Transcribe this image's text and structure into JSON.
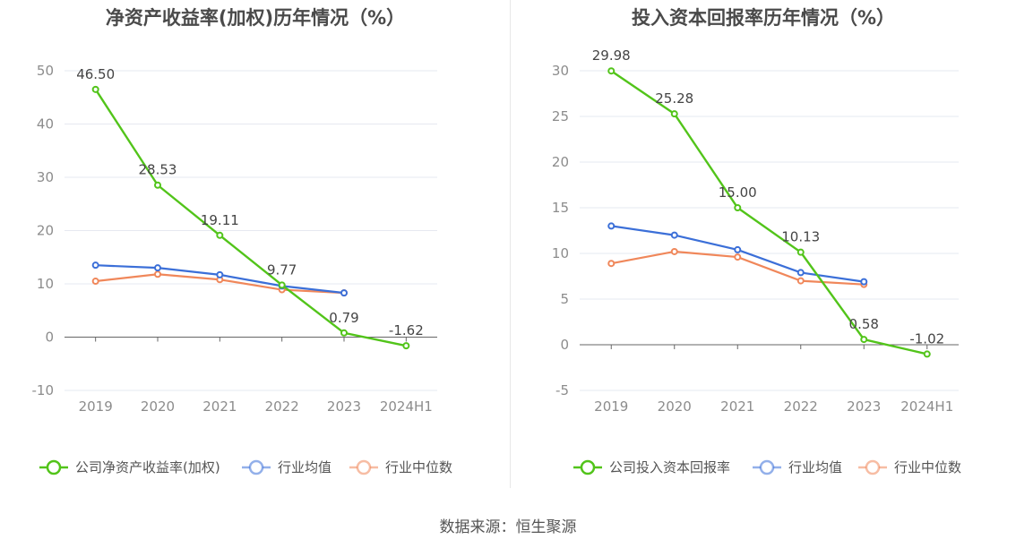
{
  "source_label": "数据来源：恒生聚源",
  "colors": {
    "company": "#52c41a",
    "avg": "#3b6fd8",
    "median": "#f0875a",
    "grid": "#e6e9f0",
    "axis": "#666666",
    "tick_text": "#8c8c8c"
  },
  "chart_data": [
    {
      "type": "line",
      "title": "净资产收益率(加权)历年情况（%）",
      "categories": [
        "2019",
        "2020",
        "2021",
        "2022",
        "2023",
        "2024H1"
      ],
      "ylim": [
        -10,
        50
      ],
      "yticks": [
        -10,
        0,
        10,
        20,
        30,
        40,
        50
      ],
      "grid": true,
      "legend_position": "bottom",
      "series": [
        {
          "name": "公司净资产收益率(加权)",
          "role": "company",
          "values": [
            46.5,
            28.53,
            19.11,
            9.77,
            0.79,
            -1.62
          ],
          "labels": [
            "46.50",
            "28.53",
            "19.11",
            "9.77",
            "0.79",
            "-1.62"
          ]
        },
        {
          "name": "行业均值",
          "role": "avg",
          "values": [
            13.5,
            13.0,
            11.7,
            9.6,
            8.3,
            null
          ]
        },
        {
          "name": "行业中位数",
          "role": "median",
          "values": [
            10.5,
            11.8,
            10.8,
            8.9,
            8.3,
            null
          ]
        }
      ]
    },
    {
      "type": "line",
      "title": "投入资本回报率历年情况（%）",
      "categories": [
        "2019",
        "2020",
        "2021",
        "2022",
        "2023",
        "2024H1"
      ],
      "ylim": [
        -5,
        30
      ],
      "yticks": [
        -5,
        0,
        5,
        10,
        15,
        20,
        25,
        30
      ],
      "grid": true,
      "legend_position": "bottom",
      "series": [
        {
          "name": "公司投入资本回报率",
          "role": "company",
          "values": [
            29.98,
            25.28,
            15.0,
            10.13,
            0.58,
            -1.02
          ],
          "labels": [
            "29.98",
            "25.28",
            "15.00",
            "10.13",
            "0.58",
            "-1.02"
          ]
        },
        {
          "name": "行业均值",
          "role": "avg",
          "values": [
            13.0,
            12.0,
            10.4,
            7.9,
            6.9,
            null
          ]
        },
        {
          "name": "行业中位数",
          "role": "median",
          "values": [
            8.9,
            10.2,
            9.6,
            7.0,
            6.6,
            null
          ]
        }
      ]
    }
  ]
}
